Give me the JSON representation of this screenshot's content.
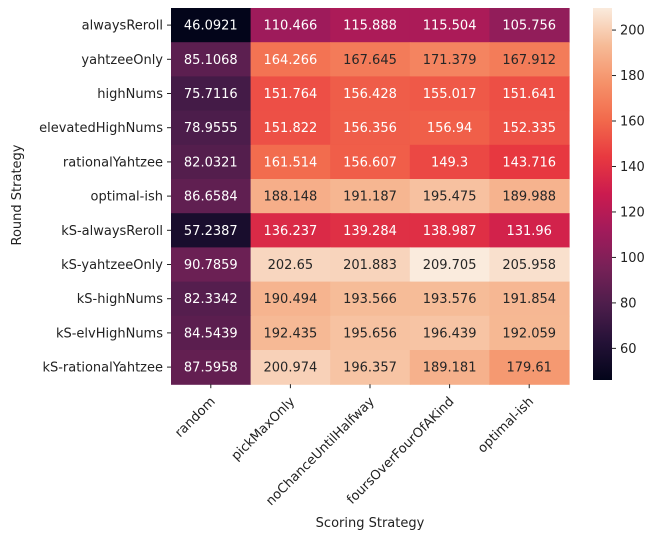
{
  "chart_data": {
    "type": "heatmap",
    "title": "",
    "xlabel": "Scoring Strategy",
    "ylabel": "Round Strategy",
    "x": [
      "random",
      "pickMaxOnly",
      "noChanceUntilHalfway",
      "foursOverFourOfAKind",
      "optimal-ish"
    ],
    "y": [
      "alwaysReroll",
      "yahtzeeOnly",
      "highNums",
      "elevatedHighNums",
      "rationalYahtzee",
      "optimal-ish",
      "kS-alwaysReroll",
      "kS-yahtzeeOnly",
      "kS-highNums",
      "kS-elvHighNums",
      "kS-rationalYahtzee"
    ],
    "values": [
      [
        "46.0921",
        "110.466",
        "115.888",
        "115.504",
        "105.756"
      ],
      [
        "85.1068",
        "164.266",
        "167.645",
        "171.379",
        "167.912"
      ],
      [
        "75.7116",
        "151.764",
        "156.428",
        "155.017",
        "151.641"
      ],
      [
        "78.9555",
        "151.822",
        "156.356",
        "156.94",
        "152.335"
      ],
      [
        "82.0321",
        "161.514",
        "156.607",
        "149.3",
        "143.716"
      ],
      [
        "86.6584",
        "188.148",
        "191.187",
        "195.475",
        "189.988"
      ],
      [
        "57.2387",
        "136.237",
        "139.284",
        "138.987",
        "131.96"
      ],
      [
        "90.7859",
        "202.65",
        "201.883",
        "209.705",
        "205.958"
      ],
      [
        "82.3342",
        "190.494",
        "193.566",
        "193.576",
        "191.854"
      ],
      [
        "84.5439",
        "192.435",
        "195.656",
        "196.439",
        "192.059"
      ],
      [
        "87.5958",
        "200.974",
        "196.357",
        "189.181",
        "179.61"
      ]
    ],
    "colorbar": {
      "min": 46.0921,
      "max": 209.705,
      "ticks": [
        "60",
        "80",
        "100",
        "120",
        "140",
        "160",
        "180",
        "200"
      ],
      "colormap": "rocket"
    },
    "grid": false,
    "legend": "colorbar-right"
  }
}
